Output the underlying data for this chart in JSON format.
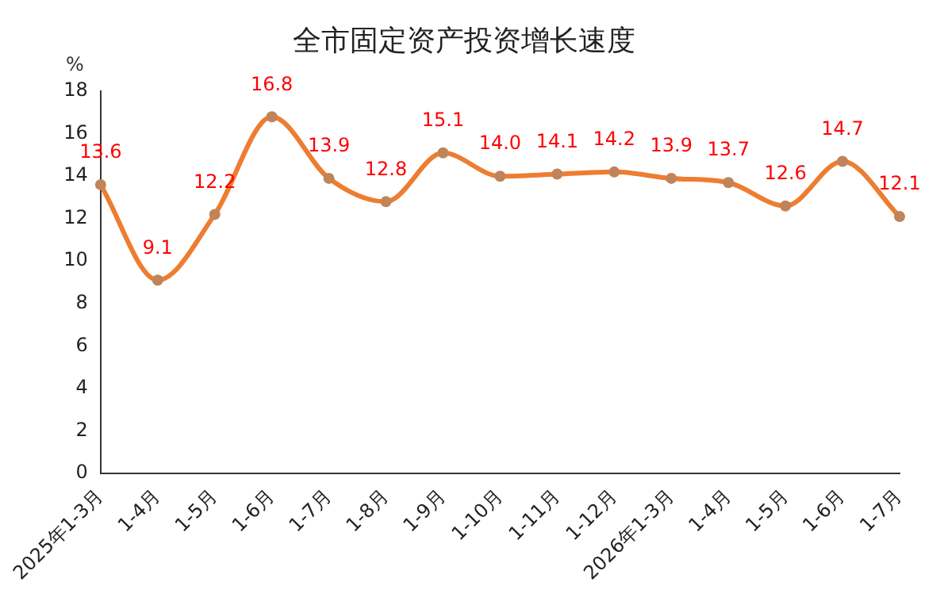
{
  "chart_data": {
    "type": "line",
    "title": "全市固定资产投资增长速度",
    "ylabel": "%",
    "categories": [
      "2025年1-3月",
      "1-4月",
      "1-5月",
      "1-6月",
      "1-7月",
      "1-8月",
      "1-9月",
      "1-10月",
      "1-11月",
      "1-12月",
      "2026年1-3月",
      "1-4月",
      "1-5月",
      "1-6月",
      "1-7月"
    ],
    "series": [
      {
        "color": "#ed7d31",
        "values": [
          13.6,
          9.1,
          12.2,
          16.8,
          13.9,
          12.8,
          15.1,
          14.0,
          14.1,
          14.2,
          13.9,
          13.7,
          12.6,
          14.7,
          12.1
        ]
      }
    ],
    "value_labels": [
      "13.6",
      "9.1",
      "12.2",
      "16.8",
      "13.9",
      "12.8",
      "15.1",
      "14.0",
      "14.1",
      "14.2",
      "13.9",
      "13.7",
      "12.6",
      "14.7",
      "12.1"
    ],
    "ylim": [
      0,
      18
    ],
    "yticks": [
      0,
      2,
      4,
      6,
      8,
      10,
      12,
      14,
      16,
      18
    ],
    "grid": false,
    "legend": false,
    "marker": "circle"
  }
}
